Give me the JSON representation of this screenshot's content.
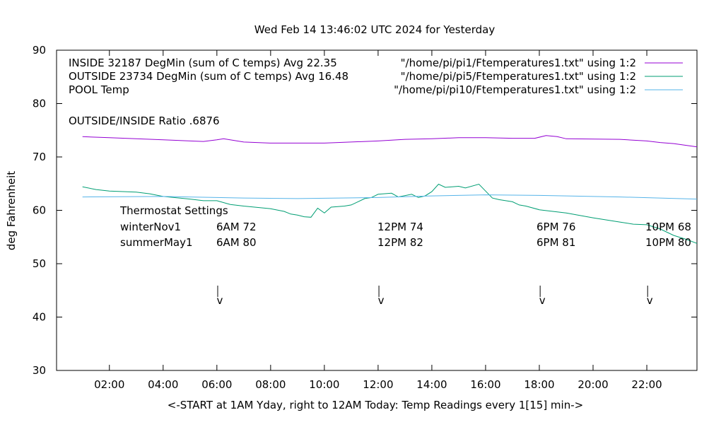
{
  "chart_data": {
    "type": "line",
    "title": "Wed Feb 14 13:46:02 UTC 2024 for Yesterday",
    "xlabel": "<-START at 1AM Yday, right to 12AM Today:  Temp Readings every 1[15] min->",
    "ylabel": "deg Fahrenheit",
    "ylim": [
      30,
      90
    ],
    "xlim": [
      "00:02",
      "23:52"
    ],
    "yticks": [
      "30",
      "40",
      "50",
      "60",
      "70",
      "80",
      "90"
    ],
    "xticks": [
      "02:00",
      "04:00",
      "06:00",
      "08:00",
      "10:00",
      "12:00",
      "14:00",
      "16:00",
      "18:00",
      "20:00",
      "22:00"
    ],
    "grid": false,
    "legend_position": "top-right",
    "series": [
      {
        "name": "INSIDE 32187 DegMin (sum of C temps) Avg 22.35",
        "source": "\"/home/pi/pi1/Ftemperatures1.txt\" using 1:2",
        "color": "#9400d3",
        "points": [
          [
            "01:00",
            73.8
          ],
          [
            "02:00",
            73.6
          ],
          [
            "04:00",
            73.2
          ],
          [
            "05:30",
            72.9
          ],
          [
            "06:00",
            73.2
          ],
          [
            "06:15",
            73.4
          ],
          [
            "07:00",
            72.8
          ],
          [
            "08:00",
            72.6
          ],
          [
            "10:00",
            72.6
          ],
          [
            "12:00",
            73.0
          ],
          [
            "13:00",
            73.3
          ],
          [
            "14:00",
            73.4
          ],
          [
            "15:00",
            73.6
          ],
          [
            "16:00",
            73.6
          ],
          [
            "17:00",
            73.5
          ],
          [
            "17:50",
            73.5
          ],
          [
            "18:15",
            74.0
          ],
          [
            "18:40",
            73.8
          ],
          [
            "19:00",
            73.4
          ],
          [
            "21:00",
            73.3
          ],
          [
            "22:00",
            73.0
          ],
          [
            "22:30",
            72.7
          ],
          [
            "23:00",
            72.5
          ],
          [
            "23:52",
            71.9
          ]
        ]
      },
      {
        "name": "OUTSIDE 23734 DegMin (sum of C temps) Avg 16.48",
        "source": "\"/home/pi/pi5/Ftemperatures1.txt\" using 1:2",
        "color": "#009e73",
        "points": [
          [
            "01:00",
            64.4
          ],
          [
            "01:30",
            63.9
          ],
          [
            "02:00",
            63.6
          ],
          [
            "03:00",
            63.4
          ],
          [
            "03:30",
            63.1
          ],
          [
            "04:00",
            62.6
          ],
          [
            "05:00",
            62.1
          ],
          [
            "05:30",
            61.8
          ],
          [
            "06:00",
            61.8
          ],
          [
            "06:30",
            61.1
          ],
          [
            "07:00",
            60.8
          ],
          [
            "08:00",
            60.3
          ],
          [
            "08:30",
            59.8
          ],
          [
            "08:45",
            59.3
          ],
          [
            "09:00",
            59.1
          ],
          [
            "09:15",
            58.8
          ],
          [
            "09:30",
            58.7
          ],
          [
            "09:45",
            60.4
          ],
          [
            "10:00",
            59.5
          ],
          [
            "10:15",
            60.6
          ],
          [
            "10:45",
            60.8
          ],
          [
            "11:00",
            61.0
          ],
          [
            "11:15",
            61.6
          ],
          [
            "11:30",
            62.2
          ],
          [
            "11:45",
            62.4
          ],
          [
            "12:00",
            63.0
          ],
          [
            "12:30",
            63.2
          ],
          [
            "12:45",
            62.5
          ],
          [
            "13:15",
            63.0
          ],
          [
            "13:30",
            62.4
          ],
          [
            "13:45",
            62.7
          ],
          [
            "14:00",
            63.5
          ],
          [
            "14:15",
            64.9
          ],
          [
            "14:30",
            64.3
          ],
          [
            "15:00",
            64.5
          ],
          [
            "15:15",
            64.2
          ],
          [
            "15:45",
            64.9
          ],
          [
            "16:00",
            63.6
          ],
          [
            "16:15",
            62.3
          ],
          [
            "16:30",
            62.0
          ],
          [
            "17:00",
            61.6
          ],
          [
            "17:15",
            61.0
          ],
          [
            "17:30",
            60.8
          ],
          [
            "18:00",
            60.1
          ],
          [
            "19:00",
            59.5
          ],
          [
            "20:00",
            58.6
          ],
          [
            "21:00",
            57.8
          ],
          [
            "21:30",
            57.4
          ],
          [
            "22:00",
            57.3
          ],
          [
            "22:30",
            56.5
          ],
          [
            "23:00",
            55.3
          ],
          [
            "23:30",
            54.5
          ],
          [
            "23:52",
            53.8
          ]
        ]
      },
      {
        "name": "POOL Temp",
        "source": "\"/home/pi/pi10/Ftemperatures1.txt\" using 1:2",
        "color": "#56b4e9",
        "points": [
          [
            "01:00",
            62.5
          ],
          [
            "04:00",
            62.6
          ],
          [
            "06:00",
            62.4
          ],
          [
            "07:00",
            62.3
          ],
          [
            "09:00",
            62.2
          ],
          [
            "12:00",
            62.4
          ],
          [
            "14:00",
            62.7
          ],
          [
            "16:00",
            62.9
          ],
          [
            "18:00",
            62.8
          ],
          [
            "21:00",
            62.5
          ],
          [
            "23:52",
            62.1
          ]
        ]
      }
    ],
    "annotations": {
      "ratio": "OUTSIDE/INSIDE Ratio .6876",
      "thermostat_title": "Thermostat Settings",
      "rows": [
        {
          "label": "winterNov1",
          "values": [
            "6AM 72",
            "12PM 74",
            "6PM 76",
            "10PM 68"
          ]
        },
        {
          "label": "summerMay1",
          "values": [
            "6AM 80",
            "12PM 82",
            "6PM 81",
            "10PM 80"
          ]
        }
      ],
      "arrow_glyph": "v",
      "arrow_times": [
        "06:05",
        "12:05",
        "18:05",
        "22:05"
      ]
    }
  }
}
